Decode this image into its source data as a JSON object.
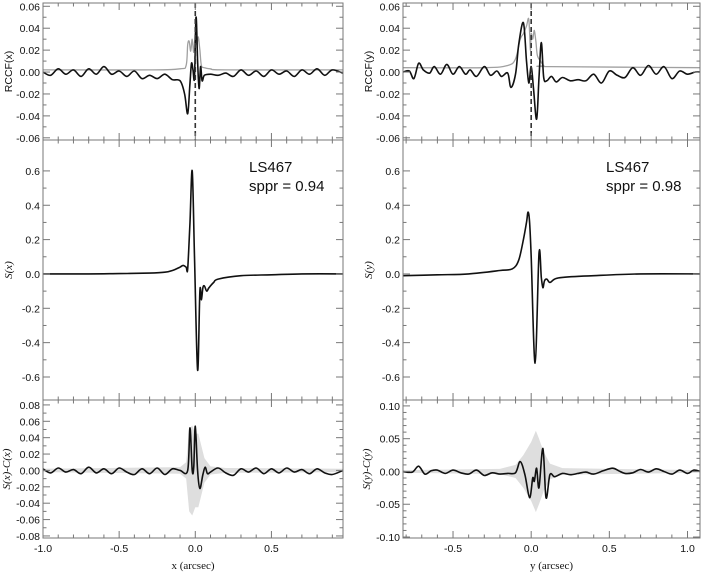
{
  "colors": {
    "black": "#111111",
    "gray": "#a0a0a0",
    "band": "#dedede",
    "axis": "#777777"
  },
  "chart_data": [
    {
      "id": "rccf-x",
      "type": "line",
      "ylabel": "RCCF(x)",
      "xlabel": "",
      "xlim": [
        -1.0,
        0.97
      ],
      "ylim": [
        -0.062,
        0.063
      ],
      "xticks": [
        -1.0,
        -0.5,
        0.0,
        0.5
      ],
      "yticks": [
        -0.06,
        -0.04,
        -0.02,
        0.0,
        0.02,
        0.04,
        0.06
      ],
      "ytick_labels": [
        "-0.06",
        "-0.04",
        "-0.02",
        "0.00",
        "0.02",
        "0.04",
        "0.06"
      ],
      "vline": 0.0,
      "series": [
        {
          "name": "gray",
          "color": "gray",
          "x": [
            -1.0,
            -0.3,
            -0.1,
            -0.06,
            -0.05,
            -0.04,
            -0.03,
            -0.02,
            -0.01,
            0.0,
            0.01,
            0.02,
            0.03,
            0.04,
            0.06,
            0.1,
            0.2,
            0.97
          ],
          "y": [
            0.002,
            0.002,
            0.003,
            0.006,
            0.025,
            0.028,
            0.019,
            0.03,
            0.018,
            0.035,
            0.025,
            0.032,
            0.02,
            0.006,
            0.004,
            0.003,
            0.002,
            0.002
          ]
        },
        {
          "name": "black",
          "color": "black",
          "x": [
            -1.0,
            -0.95,
            -0.9,
            -0.85,
            -0.8,
            -0.75,
            -0.7,
            -0.65,
            -0.6,
            -0.55,
            -0.5,
            -0.45,
            -0.4,
            -0.35,
            -0.3,
            -0.25,
            -0.2,
            -0.15,
            -0.1,
            -0.07,
            -0.05,
            -0.035,
            -0.025,
            -0.015,
            -0.005,
            0.005,
            0.015,
            0.025,
            0.035,
            0.045,
            0.06,
            0.1,
            0.15,
            0.2,
            0.25,
            0.3,
            0.35,
            0.4,
            0.45,
            0.5,
            0.55,
            0.6,
            0.65,
            0.7,
            0.75,
            0.8,
            0.85,
            0.9,
            0.97
          ],
          "y": [
            0.0,
            -0.003,
            0.003,
            -0.002,
            0.002,
            -0.004,
            0.003,
            -0.002,
            0.005,
            -0.002,
            0.001,
            -0.004,
            0.001,
            -0.006,
            -0.003,
            -0.006,
            -0.002,
            -0.007,
            -0.008,
            -0.02,
            -0.038,
            -0.01,
            0.008,
            0.002,
            -0.005,
            0.05,
            0.01,
            -0.015,
            0.005,
            -0.008,
            -0.003,
            -0.002,
            -0.003,
            -0.001,
            -0.004,
            0.002,
            -0.003,
            0.001,
            -0.004,
            0.002,
            -0.002,
            0.001,
            -0.004,
            0.002,
            -0.002,
            0.003,
            -0.003,
            0.002,
            -0.001
          ]
        }
      ]
    },
    {
      "id": "s-x",
      "type": "line",
      "ylabel": "S(x)",
      "xlabel": "",
      "xlim": [
        -1.0,
        0.97
      ],
      "ylim": [
        -0.734,
        0.78
      ],
      "xticks": [
        -1.0,
        -0.5,
        0.0,
        0.5
      ],
      "yticks": [
        -0.6,
        -0.4,
        -0.2,
        0.0,
        0.2,
        0.4,
        0.6
      ],
      "ytick_labels": [
        "-0.6",
        "-0.4",
        "-0.2",
        "0.0",
        "0.2",
        "0.4",
        "0.6"
      ],
      "annotations": [
        "LS467",
        "sppr = 0.94"
      ],
      "series": [
        {
          "name": "black",
          "color": "black",
          "x": [
            -1.0,
            -0.7,
            -0.5,
            -0.3,
            -0.2,
            -0.15,
            -0.1,
            -0.08,
            -0.06,
            -0.05,
            -0.035,
            -0.02,
            -0.005,
            0.015,
            0.03,
            0.04,
            0.05,
            0.06,
            0.075,
            0.09,
            0.12,
            0.15,
            0.3,
            0.5,
            0.7,
            0.97
          ],
          "y": [
            0.0,
            0.0,
            0.002,
            0.005,
            0.01,
            0.02,
            0.04,
            0.05,
            0.04,
            0.03,
            0.3,
            0.6,
            0.1,
            -0.56,
            -0.1,
            -0.15,
            -0.08,
            -0.07,
            -0.1,
            -0.08,
            -0.05,
            -0.03,
            -0.01,
            -0.005,
            0.0,
            0.0
          ]
        }
      ]
    },
    {
      "id": "sx-minus-cx",
      "type": "line",
      "ylabel": "S(x)-C(x)",
      "xlabel": "x (arcsec)",
      "xlim": [
        -1.0,
        0.97
      ],
      "ylim": [
        -0.0825,
        0.086
      ],
      "xticks": [
        -1.0,
        -0.5,
        0.0,
        0.5
      ],
      "xtick_labels": [
        "-1.0",
        "-0.5",
        "0.0",
        "0.5"
      ],
      "yticks": [
        -0.08,
        -0.06,
        -0.04,
        -0.02,
        0.0,
        0.02,
        0.04,
        0.06,
        0.08
      ],
      "ytick_labels": [
        "-0.08",
        "-0.06",
        "-0.04",
        "-0.02",
        "0.00",
        "0.02",
        "0.04",
        "0.06",
        "0.08"
      ],
      "band": {
        "x": [
          -1.0,
          -0.1,
          -0.06,
          -0.04,
          -0.02,
          0.0,
          0.02,
          0.04,
          0.06,
          0.1,
          0.2,
          0.97
        ],
        "half_width": [
          0.002,
          0.004,
          0.01,
          0.05,
          0.055,
          0.045,
          0.045,
          0.03,
          0.015,
          0.005,
          0.003,
          0.002
        ]
      },
      "series": [
        {
          "name": "black",
          "color": "black",
          "x": [
            -1.0,
            -0.95,
            -0.9,
            -0.85,
            -0.8,
            -0.75,
            -0.7,
            -0.65,
            -0.6,
            -0.55,
            -0.5,
            -0.45,
            -0.4,
            -0.35,
            -0.3,
            -0.25,
            -0.2,
            -0.15,
            -0.1,
            -0.05,
            -0.035,
            -0.02,
            -0.01,
            0.0,
            0.015,
            0.03,
            0.05,
            0.065,
            0.08,
            0.1,
            0.15,
            0.2,
            0.25,
            0.3,
            0.35,
            0.4,
            0.45,
            0.5,
            0.55,
            0.6,
            0.65,
            0.7,
            0.75,
            0.8,
            0.85,
            0.9,
            0.97
          ],
          "y": [
            0.002,
            -0.003,
            0.003,
            -0.002,
            0.001,
            -0.004,
            0.004,
            -0.003,
            0.002,
            -0.004,
            0.003,
            -0.002,
            -0.005,
            0.002,
            -0.004,
            0.003,
            -0.005,
            0.002,
            0.0,
            0.0,
            0.052,
            0.0,
            0.005,
            0.054,
            0.0,
            -0.022,
            -0.005,
            0.004,
            -0.004,
            -0.002,
            0.003,
            -0.003,
            -0.006,
            0.002,
            -0.002,
            0.003,
            -0.004,
            0.002,
            -0.003,
            0.003,
            -0.002,
            0.001,
            -0.004,
            0.002,
            -0.003,
            -0.005,
            0.0
          ]
        }
      ]
    },
    {
      "id": "rccf-y",
      "type": "line",
      "ylabel": "RCCF(y)",
      "xlabel": "",
      "xlim": [
        -0.82,
        1.08
      ],
      "ylim": [
        -0.062,
        0.063
      ],
      "xticks": [
        -0.5,
        0.0,
        0.5,
        1.0
      ],
      "yticks": [
        -0.06,
        -0.04,
        -0.02,
        0.0,
        0.02,
        0.04,
        0.06
      ],
      "ytick_labels": [
        "-0.06",
        "-0.04",
        "-0.02",
        "0.00",
        "0.02",
        "0.04",
        "0.06"
      ],
      "vline": 0.0,
      "series": [
        {
          "name": "gray",
          "color": "gray",
          "x": [
            -0.82,
            -0.3,
            -0.15,
            -0.1,
            -0.07,
            -0.05,
            -0.03,
            -0.015,
            -0.005,
            0.0,
            0.01,
            0.02,
            0.03,
            0.04,
            0.06,
            0.08,
            0.12,
            1.08
          ],
          "y": [
            0.004,
            0.004,
            0.006,
            0.012,
            0.03,
            0.035,
            0.042,
            0.048,
            0.02,
            0.035,
            0.03,
            0.038,
            0.028,
            0.015,
            0.01,
            0.006,
            0.005,
            0.004
          ]
        },
        {
          "name": "black",
          "color": "black",
          "x": [
            -0.82,
            -0.78,
            -0.75,
            -0.72,
            -0.69,
            -0.65,
            -0.62,
            -0.58,
            -0.54,
            -0.5,
            -0.46,
            -0.42,
            -0.39,
            -0.35,
            -0.3,
            -0.26,
            -0.22,
            -0.19,
            -0.15,
            -0.13,
            -0.1,
            -0.08,
            -0.05,
            -0.03,
            -0.015,
            0.0,
            0.015,
            0.035,
            0.05,
            0.065,
            0.08,
            0.1,
            0.13,
            0.16,
            0.2,
            0.25,
            0.3,
            0.35,
            0.4,
            0.45,
            0.5,
            0.55,
            0.6,
            0.65,
            0.7,
            0.75,
            0.8,
            0.85,
            0.9,
            0.95,
            1.0,
            1.05,
            1.08
          ],
          "y": [
            0.0,
            0.001,
            -0.006,
            0.008,
            0.002,
            -0.001,
            0.005,
            -0.002,
            0.007,
            -0.002,
            0.005,
            -0.002,
            0.002,
            -0.004,
            0.005,
            -0.003,
            0.001,
            -0.004,
            -0.001,
            -0.014,
            -0.002,
            0.025,
            0.045,
            0.01,
            -0.01,
            0.005,
            -0.015,
            -0.043,
            -0.005,
            0.027,
            -0.005,
            -0.008,
            -0.004,
            -0.009,
            -0.005,
            -0.008,
            -0.007,
            -0.008,
            -0.002,
            -0.01,
            0.001,
            -0.003,
            -0.005,
            0.004,
            -0.003,
            0.006,
            -0.002,
            0.005,
            -0.006,
            0.001,
            -0.002,
            0.0,
            0.0
          ]
        }
      ]
    },
    {
      "id": "s-y",
      "type": "line",
      "ylabel": "S(y)",
      "xlabel": "",
      "xlim": [
        -0.82,
        1.08
      ],
      "ylim": [
        -0.734,
        0.78
      ],
      "xticks": [
        -0.5,
        0.0,
        0.5,
        1.0
      ],
      "yticks": [
        -0.6,
        -0.4,
        -0.2,
        0.0,
        0.2,
        0.4,
        0.6
      ],
      "ytick_labels": [
        "-0.6",
        "-0.4",
        "-0.2",
        "0.0",
        "0.2",
        "0.4",
        "0.6"
      ],
      "annotations": [
        "LS467",
        "sppr = 0.98"
      ],
      "series": [
        {
          "name": "black",
          "color": "black",
          "x": [
            -0.82,
            -0.6,
            -0.4,
            -0.2,
            -0.12,
            -0.08,
            -0.05,
            -0.03,
            -0.02,
            -0.01,
            0.0,
            0.025,
            0.05,
            0.065,
            0.075,
            0.085,
            0.1,
            0.12,
            0.15,
            0.2,
            0.4,
            0.7,
            1.08
          ],
          "y": [
            -0.01,
            -0.005,
            0.0,
            0.02,
            0.03,
            0.08,
            0.2,
            0.3,
            0.36,
            0.3,
            0.1,
            -0.52,
            0.12,
            -0.02,
            -0.08,
            -0.04,
            -0.03,
            -0.05,
            -0.03,
            -0.02,
            -0.01,
            0.0,
            0.0
          ]
        }
      ]
    },
    {
      "id": "sy-minus-cy",
      "type": "line",
      "ylabel": "S(y)-C(y)",
      "xlabel": "y (arcsec)",
      "xlim": [
        -0.82,
        1.08
      ],
      "ylim": [
        -0.1015,
        0.109
      ],
      "xticks": [
        -0.5,
        0.0,
        0.5,
        1.0
      ],
      "xtick_labels": [
        "-0.5",
        "0.0",
        "0.5",
        "1.0"
      ],
      "yticks": [
        -0.1,
        -0.05,
        0.0,
        0.05,
        0.1
      ],
      "ytick_labels": [
        "-0.10",
        "-0.05",
        "0.00",
        "0.05",
        "0.10"
      ],
      "band": {
        "x": [
          -0.82,
          -0.2,
          -0.1,
          -0.05,
          0.0,
          0.03,
          0.05,
          0.08,
          0.12,
          0.2,
          1.08
        ],
        "half_width": [
          0.002,
          0.004,
          0.01,
          0.025,
          0.045,
          0.062,
          0.05,
          0.03,
          0.012,
          0.005,
          0.002
        ]
      },
      "series": [
        {
          "name": "black",
          "color": "black",
          "x": [
            -0.82,
            -0.76,
            -0.72,
            -0.68,
            -0.64,
            -0.6,
            -0.55,
            -0.5,
            -0.45,
            -0.4,
            -0.35,
            -0.3,
            -0.25,
            -0.2,
            -0.15,
            -0.1,
            -0.07,
            -0.04,
            -0.01,
            0.01,
            0.02,
            0.035,
            0.05,
            0.075,
            0.095,
            0.12,
            0.15,
            0.2,
            0.25,
            0.3,
            0.35,
            0.4,
            0.46,
            0.52,
            0.56,
            0.6,
            0.65,
            0.7,
            0.75,
            0.8,
            0.85,
            0.9,
            0.95,
            1.0,
            1.04,
            1.08
          ],
          "y": [
            0.0,
            -0.001,
            0.008,
            -0.004,
            0.001,
            0.002,
            -0.003,
            0.002,
            -0.002,
            -0.004,
            0.002,
            -0.006,
            -0.002,
            -0.004,
            -0.003,
            -0.002,
            0.015,
            -0.005,
            -0.04,
            -0.01,
            -0.015,
            0.005,
            -0.025,
            0.035,
            -0.04,
            -0.005,
            -0.008,
            -0.003,
            -0.005,
            -0.003,
            -0.001,
            -0.004,
            0.001,
            0.005,
            0.001,
            -0.003,
            -0.002,
            0.003,
            -0.001,
            0.004,
            0.0,
            -0.004,
            0.002,
            -0.003,
            0.002,
            0.0
          ]
        }
      ]
    }
  ]
}
